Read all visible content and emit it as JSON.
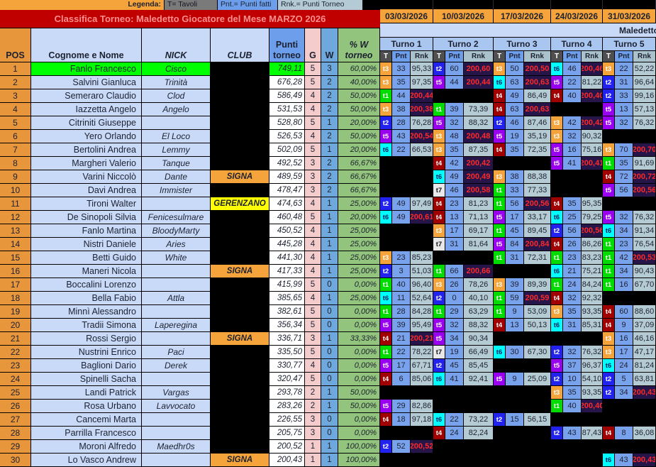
{
  "legend": {
    "label": "Legenda:",
    "items": [
      {
        "text": "T= Tavoli"
      },
      {
        "text": "Pnt.= Punti fatti"
      },
      {
        "text": "Rnk.= Punti Torneo"
      }
    ]
  },
  "title": "Classifica Torneo: Maledetto Giocatore del Mese MARZO 2026",
  "scroll_text": "Maledetto",
  "column_headers": {
    "pos": "POS",
    "name": "Cognome e Nome",
    "nick": "NICK",
    "club": "CLUB",
    "punti": "Punti torneo",
    "g": "G",
    "w": "W",
    "pw": "% W torneo"
  },
  "sub_headers": {
    "t": "T",
    "pnt": "Pnt",
    "rnk": "Rnk"
  },
  "turni": [
    {
      "label": "Turno 1",
      "date": "03/03/2026"
    },
    {
      "label": "Turno 2",
      "date": "10/03/2026"
    },
    {
      "label": "Turno 3",
      "date": "17/03/2026"
    },
    {
      "label": "Turno 4",
      "date": "24/03/2026"
    },
    {
      "label": "Turno 5",
      "date": "31/03/2026"
    }
  ],
  "colors": {
    "orange": "#F5A33B",
    "pos_orange": "#E8963C",
    "banner_red": "#C00000",
    "highlight_green": "#00FF00",
    "club_signa": "#F5A33B",
    "club_gerenzano": "#FFFF00",
    "t1": "#00DC00",
    "t2": "#2222EE",
    "t3": "#F5A33B",
    "t4": "#A00000",
    "t5": "#9900F0",
    "t6": "#00FFFF",
    "t7": "#E8E8E8",
    "rnk_win_bg": "#251549",
    "rnk_win_text": "#FF2A2A"
  },
  "rows": [
    {
      "pos": "1",
      "name": "Fanlo Francesco",
      "nick": "Cisco",
      "club": "",
      "punti": "749,11",
      "g": "5",
      "w": "3",
      "pw": "60,00%",
      "hl": true,
      "turni": [
        [
          "t3",
          "33",
          "95,33"
        ],
        [
          "t2",
          "60",
          "200,60"
        ],
        [
          "t3",
          "50",
          "200,50"
        ],
        [
          "t6",
          "46",
          "200,46"
        ],
        [
          "t3",
          "22",
          "52,22"
        ]
      ]
    },
    {
      "pos": "2",
      "name": "Salvini Gianluca",
      "nick": "Trinità",
      "club": "",
      "punti": "676,28",
      "g": "5",
      "w": "2",
      "pw": "40,00%",
      "turni": [
        [
          "t3",
          "35",
          "97,35"
        ],
        [
          "t5",
          "44",
          "200,44"
        ],
        [
          "t6",
          "63",
          "200,63"
        ],
        [
          "t5",
          "22",
          "81,22"
        ],
        [
          "t2",
          "31",
          "96,64"
        ]
      ]
    },
    {
      "pos": "3",
      "name": "Semeraro Claudio",
      "nick": "Clod",
      "club": "",
      "punti": "586,49",
      "g": "4",
      "w": "2",
      "pw": "50,00%",
      "turni": [
        [
          "t1",
          "44",
          "200,44"
        ],
        null,
        [
          "t4",
          "49",
          "86,49"
        ],
        [
          "t4",
          "40",
          "200,40"
        ],
        [
          "t2",
          "33",
          "99,16"
        ]
      ]
    },
    {
      "pos": "4",
      "name": "Iazzetta Angelo",
      "nick": "Angelo",
      "club": "",
      "punti": "531,53",
      "g": "4",
      "w": "2",
      "pw": "50,00%",
      "turni": [
        [
          "t3",
          "38",
          "200,38"
        ],
        [
          "t1",
          "39",
          "73,39"
        ],
        [
          "t4",
          "63",
          "200,63"
        ],
        null,
        [
          "t5",
          "13",
          "57,13"
        ]
      ]
    },
    {
      "pos": "5",
      "name": "Citriniti Giuseppe",
      "nick": "",
      "club": "",
      "punti": "528,80",
      "g": "5",
      "w": "1",
      "pw": "20,00%",
      "turni": [
        [
          "t2",
          "28",
          "76,28"
        ],
        [
          "t5",
          "32",
          "88,32"
        ],
        [
          "t2",
          "46",
          "87,46"
        ],
        [
          "t3",
          "42",
          "200,42"
        ],
        [
          "t5",
          "32",
          "76,32"
        ]
      ]
    },
    {
      "pos": "6",
      "name": "Yero Orlando",
      "nick": "El Loco",
      "club": "",
      "punti": "526,53",
      "g": "4",
      "w": "2",
      "pw": "50,00%",
      "turni": [
        [
          "t5",
          "43",
          "200,54"
        ],
        [
          "t3",
          "48",
          "200,48"
        ],
        [
          "t5",
          "19",
          "35,19"
        ],
        [
          "t3",
          "32",
          "90,32"
        ],
        null
      ]
    },
    {
      "pos": "7",
      "name": "Bertolini Andrea",
      "nick": "Lemmy",
      "club": "",
      "punti": "502,09",
      "g": "5",
      "w": "1",
      "pw": "20,00%",
      "turni": [
        [
          "t6",
          "22",
          "66,53"
        ],
        [
          "t3",
          "35",
          "87,35"
        ],
        [
          "t4",
          "35",
          "72,35"
        ],
        [
          "t5",
          "16",
          "75,16"
        ],
        [
          "t3",
          "70",
          "200,70"
        ]
      ]
    },
    {
      "pos": "8",
      "name": "Margheri Valerio",
      "nick": "Tanque",
      "club": "",
      "punti": "492,52",
      "g": "3",
      "w": "2",
      "pw": "66,67%",
      "turni": [
        null,
        [
          "t4",
          "42",
          "200,42"
        ],
        null,
        [
          "t5",
          "41",
          "200,41"
        ],
        [
          "t1",
          "35",
          "91,69"
        ]
      ]
    },
    {
      "pos": "9",
      "name": "Varini Niccolò",
      "nick": "Dante",
      "club": "SIGNA",
      "punti": "489,59",
      "g": "3",
      "w": "2",
      "pw": "66,67%",
      "turni": [
        null,
        [
          "t6",
          "49",
          "200,49"
        ],
        [
          "t3",
          "38",
          "88,38"
        ],
        null,
        [
          "t4",
          "72",
          "200,72"
        ]
      ]
    },
    {
      "pos": "10",
      "name": "Davi Andrea",
      "nick": "Immister",
      "club": "",
      "punti": "478,47",
      "g": "3",
      "w": "2",
      "pw": "66,67%",
      "turni": [
        null,
        [
          "t7",
          "46",
          "200,58"
        ],
        [
          "t1",
          "33",
          "77,33"
        ],
        null,
        [
          "t5",
          "56",
          "200,56"
        ]
      ]
    },
    {
      "pos": "11",
      "name": "Tironi Walter",
      "nick": "",
      "club": "GERENZANO",
      "punti": "474,63",
      "g": "4",
      "w": "1",
      "pw": "25,00%",
      "turni": [
        [
          "t2",
          "49",
          "97,49"
        ],
        [
          "t4",
          "23",
          "81,23"
        ],
        [
          "t1",
          "56",
          "200,56"
        ],
        [
          "t4",
          "35",
          "95,35"
        ],
        null
      ]
    },
    {
      "pos": "12",
      "name": "De Sinopoli Silvia",
      "nick": "Fenicesulmare",
      "club": "",
      "punti": "460,48",
      "g": "5",
      "w": "1",
      "pw": "20,00%",
      "turni": [
        [
          "t6",
          "49",
          "200,61"
        ],
        [
          "t4",
          "13",
          "71,13"
        ],
        [
          "t5",
          "17",
          "33,17"
        ],
        [
          "t6",
          "25",
          "79,25"
        ],
        [
          "t5",
          "32",
          "76,32"
        ]
      ]
    },
    {
      "pos": "13",
      "name": "Fanlo Martina",
      "nick": "BloodyMarty",
      "club": "",
      "punti": "450,52",
      "g": "4",
      "w": "1",
      "pw": "25,00%",
      "turni": [
        null,
        [
          "t3",
          "17",
          "69,17"
        ],
        [
          "t1",
          "45",
          "89,45"
        ],
        [
          "t2",
          "56",
          "200,56"
        ],
        [
          "t6",
          "34",
          "91,34"
        ]
      ]
    },
    {
      "pos": "14",
      "name": "Nistri Daniele",
      "nick": "Aries",
      "club": "",
      "punti": "445,28",
      "g": "4",
      "w": "1",
      "pw": "25,00%",
      "turni": [
        null,
        [
          "t7",
          "31",
          "81,64"
        ],
        [
          "t5",
          "84",
          "200,84"
        ],
        [
          "t4",
          "26",
          "86,26"
        ],
        [
          "t1",
          "23",
          "76,54"
        ]
      ]
    },
    {
      "pos": "15",
      "name": "Betti Guido",
      "nick": "White",
      "club": "",
      "punti": "441,30",
      "g": "4",
      "w": "1",
      "pw": "25,00%",
      "turni": [
        [
          "t3",
          "23",
          "85,23"
        ],
        null,
        [
          "t1",
          "31",
          "72,31"
        ],
        [
          "t1",
          "23",
          "83,23"
        ],
        [
          "t1",
          "42",
          "200,53"
        ]
      ]
    },
    {
      "pos": "16",
      "name": "Maneri Nicola",
      "nick": "",
      "club": "SIGNA",
      "punti": "417,33",
      "g": "4",
      "w": "1",
      "pw": "25,00%",
      "turni": [
        [
          "t2",
          "3",
          "51,03"
        ],
        [
          "t1",
          "66",
          "200,66"
        ],
        null,
        [
          "t6",
          "21",
          "75,21"
        ],
        [
          "t1",
          "34",
          "90,43"
        ]
      ]
    },
    {
      "pos": "17",
      "name": "Boccalini Lorenzo",
      "nick": "",
      "club": "",
      "punti": "415,99",
      "g": "5",
      "w": "0",
      "pw": "0,00%",
      "turni": [
        [
          "t1",
          "40",
          "96,40"
        ],
        [
          "t3",
          "26",
          "78,26"
        ],
        [
          "t3",
          "39",
          "89,39"
        ],
        [
          "t1",
          "24",
          "84,24"
        ],
        [
          "t1",
          "16",
          "67,70"
        ]
      ]
    },
    {
      "pos": "18",
      "name": "Bella Fabio",
      "nick": "Attla",
      "club": "",
      "punti": "385,65",
      "g": "4",
      "w": "1",
      "pw": "25,00%",
      "turni": [
        [
          "t6",
          "11",
          "52,64"
        ],
        [
          "t2",
          "0",
          "40,10"
        ],
        [
          "t1",
          "59",
          "200,59"
        ],
        [
          "t4",
          "32",
          "92,32"
        ],
        null
      ]
    },
    {
      "pos": "19",
      "name": "Minnì Alessandro",
      "nick": "",
      "club": "",
      "punti": "382,61",
      "g": "5",
      "w": "0",
      "pw": "0,00%",
      "turni": [
        [
          "t1",
          "28",
          "84,28"
        ],
        [
          "t1",
          "29",
          "63,29"
        ],
        [
          "t1",
          "9",
          "53,09"
        ],
        [
          "t3",
          "35",
          "93,35"
        ],
        [
          "t4",
          "60",
          "88,60"
        ]
      ]
    },
    {
      "pos": "20",
      "name": "Tradii Simona",
      "nick": "Laperegina",
      "club": "",
      "punti": "356,34",
      "g": "5",
      "w": "0",
      "pw": "0,00%",
      "turni": [
        [
          "t5",
          "39",
          "95,49"
        ],
        [
          "t5",
          "32",
          "88,32"
        ],
        [
          "t4",
          "13",
          "50,13"
        ],
        [
          "t6",
          "31",
          "85,31"
        ],
        [
          "t4",
          "9",
          "37,09"
        ]
      ]
    },
    {
      "pos": "21",
      "name": "Rossi Sergio",
      "nick": "",
      "club": "SIGNA",
      "punti": "336,71",
      "g": "3",
      "w": "1",
      "pw": "33,33%",
      "turni": [
        [
          "t4",
          "21",
          "200,21"
        ],
        [
          "t5",
          "34",
          "90,34"
        ],
        null,
        null,
        [
          "t3",
          "16",
          "46,16"
        ]
      ]
    },
    {
      "pos": "22",
      "name": "Nustrini Enrico",
      "nick": "Paci",
      "club": "",
      "punti": "335,50",
      "g": "5",
      "w": "0",
      "pw": "0,00%",
      "turni": [
        [
          "t1",
          "22",
          "78,22"
        ],
        [
          "t7",
          "19",
          "66,49"
        ],
        [
          "t6",
          "30",
          "67,30"
        ],
        [
          "t2",
          "32",
          "76,32"
        ],
        [
          "t3",
          "17",
          "47,17"
        ]
      ]
    },
    {
      "pos": "23",
      "name": "Baglioni Dario",
      "nick": "Derek",
      "club": "",
      "punti": "330,77",
      "g": "4",
      "w": "0",
      "pw": "0,00%",
      "turni": [
        [
          "t5",
          "17",
          "67,71"
        ],
        [
          "t2",
          "45",
          "85,45"
        ],
        null,
        [
          "t5",
          "37",
          "96,37"
        ],
        [
          "t6",
          "24",
          "81,24"
        ]
      ]
    },
    {
      "pos": "24",
      "name": "Spinelli Sacha",
      "nick": "",
      "club": "",
      "punti": "320,47",
      "g": "5",
      "w": "0",
      "pw": "0,00%",
      "turni": [
        [
          "t4",
          "6",
          "85,06"
        ],
        [
          "t6",
          "41",
          "92,41"
        ],
        [
          "t5",
          "9",
          "25,09"
        ],
        [
          "t2",
          "10",
          "54,10"
        ],
        [
          "t2",
          "5",
          "63,81"
        ]
      ]
    },
    {
      "pos": "25",
      "name": "Landi Patrick",
      "nick": "Vargas",
      "club": "",
      "punti": "293,78",
      "g": "2",
      "w": "1",
      "pw": "50,00%",
      "turni": [
        null,
        null,
        null,
        [
          "t3",
          "35",
          "93,35"
        ],
        [
          "t2",
          "34",
          "200,43"
        ]
      ]
    },
    {
      "pos": "26",
      "name": "Rosa Urbano",
      "nick": "Lavvocato",
      "club": "",
      "punti": "283,26",
      "g": "2",
      "w": "1",
      "pw": "50,00%",
      "turni": [
        [
          "t5",
          "29",
          "82,86"
        ],
        null,
        null,
        [
          "t1",
          "40",
          "200,40"
        ],
        null
      ]
    },
    {
      "pos": "27",
      "name": "Cancemi Marta",
      "nick": "",
      "club": "",
      "punti": "226,55",
      "g": "3",
      "w": "0",
      "pw": "0,00%",
      "turni": [
        [
          "t4",
          "18",
          "97,18"
        ],
        [
          "t6",
          "22",
          "73,22"
        ],
        [
          "t2",
          "15",
          "56,15"
        ],
        null,
        null
      ]
    },
    {
      "pos": "28",
      "name": "Parrilla Francesco",
      "nick": "",
      "club": "",
      "punti": "205,75",
      "g": "3",
      "w": "0",
      "pw": "0,00%",
      "turni": [
        null,
        [
          "t4",
          "24",
          "82,24"
        ],
        null,
        [
          "t2",
          "43",
          "87,43"
        ],
        [
          "t4",
          "8",
          "36,08"
        ]
      ]
    },
    {
      "pos": "29",
      "name": "Moroni Alfredo",
      "nick": "Maedhr0s",
      "club": "",
      "punti": "200,52",
      "g": "1",
      "w": "1",
      "pw": "100,00%",
      "turni": [
        [
          "t2",
          "52",
          "200,52"
        ],
        null,
        null,
        null,
        null
      ]
    },
    {
      "pos": "30",
      "name": "Lo Vasco Andrew",
      "nick": "",
      "club": "SIGNA",
      "punti": "200,43",
      "g": "1",
      "w": "1",
      "pw": "100,00%",
      "turni": [
        null,
        null,
        null,
        null,
        [
          "t6",
          "43",
          "200,43"
        ]
      ]
    }
  ]
}
